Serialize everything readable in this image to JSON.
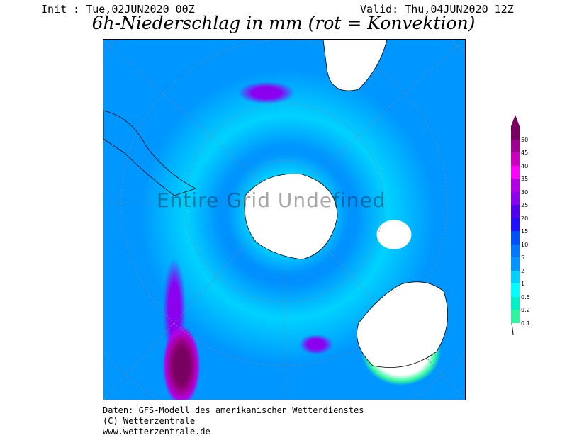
{
  "header": {
    "init": "Init : Tue,02JUN2020 00Z",
    "valid": "Valid: Thu,04JUN2020 12Z",
    "title": "6h-Niederschlag in mm (rot = Konvektion)"
  },
  "map": {
    "watermark": "Entire Grid Undefined",
    "projection": "polar stereographic, south pole"
  },
  "legend": {
    "bands": [
      {
        "label": "0.1",
        "color": "#30f5a0"
      },
      {
        "label": "0.2",
        "color": "#00f0c8"
      },
      {
        "label": "0.5",
        "color": "#00ffff"
      },
      {
        "label": "1",
        "color": "#00d2ff"
      },
      {
        "label": "2",
        "color": "#0096ff"
      },
      {
        "label": "5",
        "color": "#0078ff"
      },
      {
        "label": "10",
        "color": "#0050ff"
      },
      {
        "label": "15",
        "color": "#2010ff"
      },
      {
        "label": "20",
        "color": "#5000f0"
      },
      {
        "label": "25",
        "color": "#8c00f0"
      },
      {
        "label": "30",
        "color": "#b400e6"
      },
      {
        "label": "35",
        "color": "#ff00ff"
      },
      {
        "label": "40",
        "color": "#cc00c0"
      },
      {
        "label": "45",
        "color": "#a00090"
      },
      {
        "label": "50",
        "color": "#780060"
      }
    ]
  },
  "footer": {
    "line1": "Daten: GFS-Modell des amerikanischen Wetterdienstes",
    "line2": "(C) Wetterzentrale",
    "line3": "www.wetterzentrale.de"
  }
}
